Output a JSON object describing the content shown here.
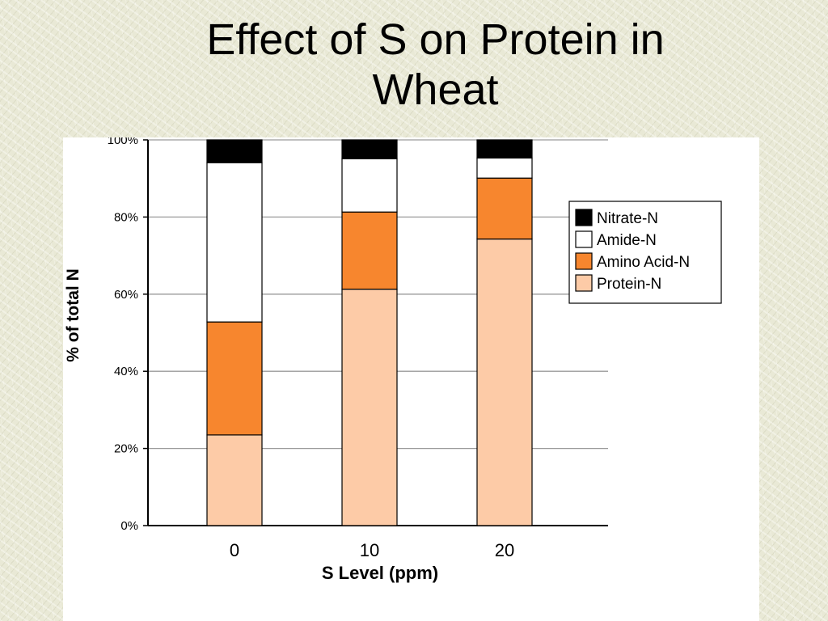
{
  "slide": {
    "title_line1": "Effect of S on Protein in",
    "title_line2": "Wheat"
  },
  "colors": {
    "nitrate": "#000000",
    "amide": "#ffffff",
    "amino": "#f7862e",
    "protein": "#fdcba7",
    "grid": "#9a9a9a",
    "axis": "#000000"
  },
  "chart_data": {
    "type": "bar",
    "stacked": true,
    "title": "",
    "xlabel": "S Level (ppm)",
    "ylabel": "% of total N",
    "categories": [
      "0",
      "10",
      "20"
    ],
    "ylim": [
      0,
      100
    ],
    "yticks": [
      "0%",
      "20%",
      "40%",
      "60%",
      "80%",
      "100%"
    ],
    "grid": true,
    "legend_position": "right",
    "series": [
      {
        "name": "Protein-N",
        "color": "#fdcba7",
        "values": [
          23.5,
          61.3,
          74.3
        ]
      },
      {
        "name": "Amino Acid-N",
        "color": "#f7862e",
        "values": [
          29.3,
          20.0,
          15.8
        ]
      },
      {
        "name": "Amide-N",
        "color": "#ffffff",
        "values": [
          41.3,
          13.8,
          5.2
        ]
      },
      {
        "name": "Nitrate-N",
        "color": "#000000",
        "values": [
          5.9,
          4.9,
          4.7
        ]
      }
    ]
  }
}
